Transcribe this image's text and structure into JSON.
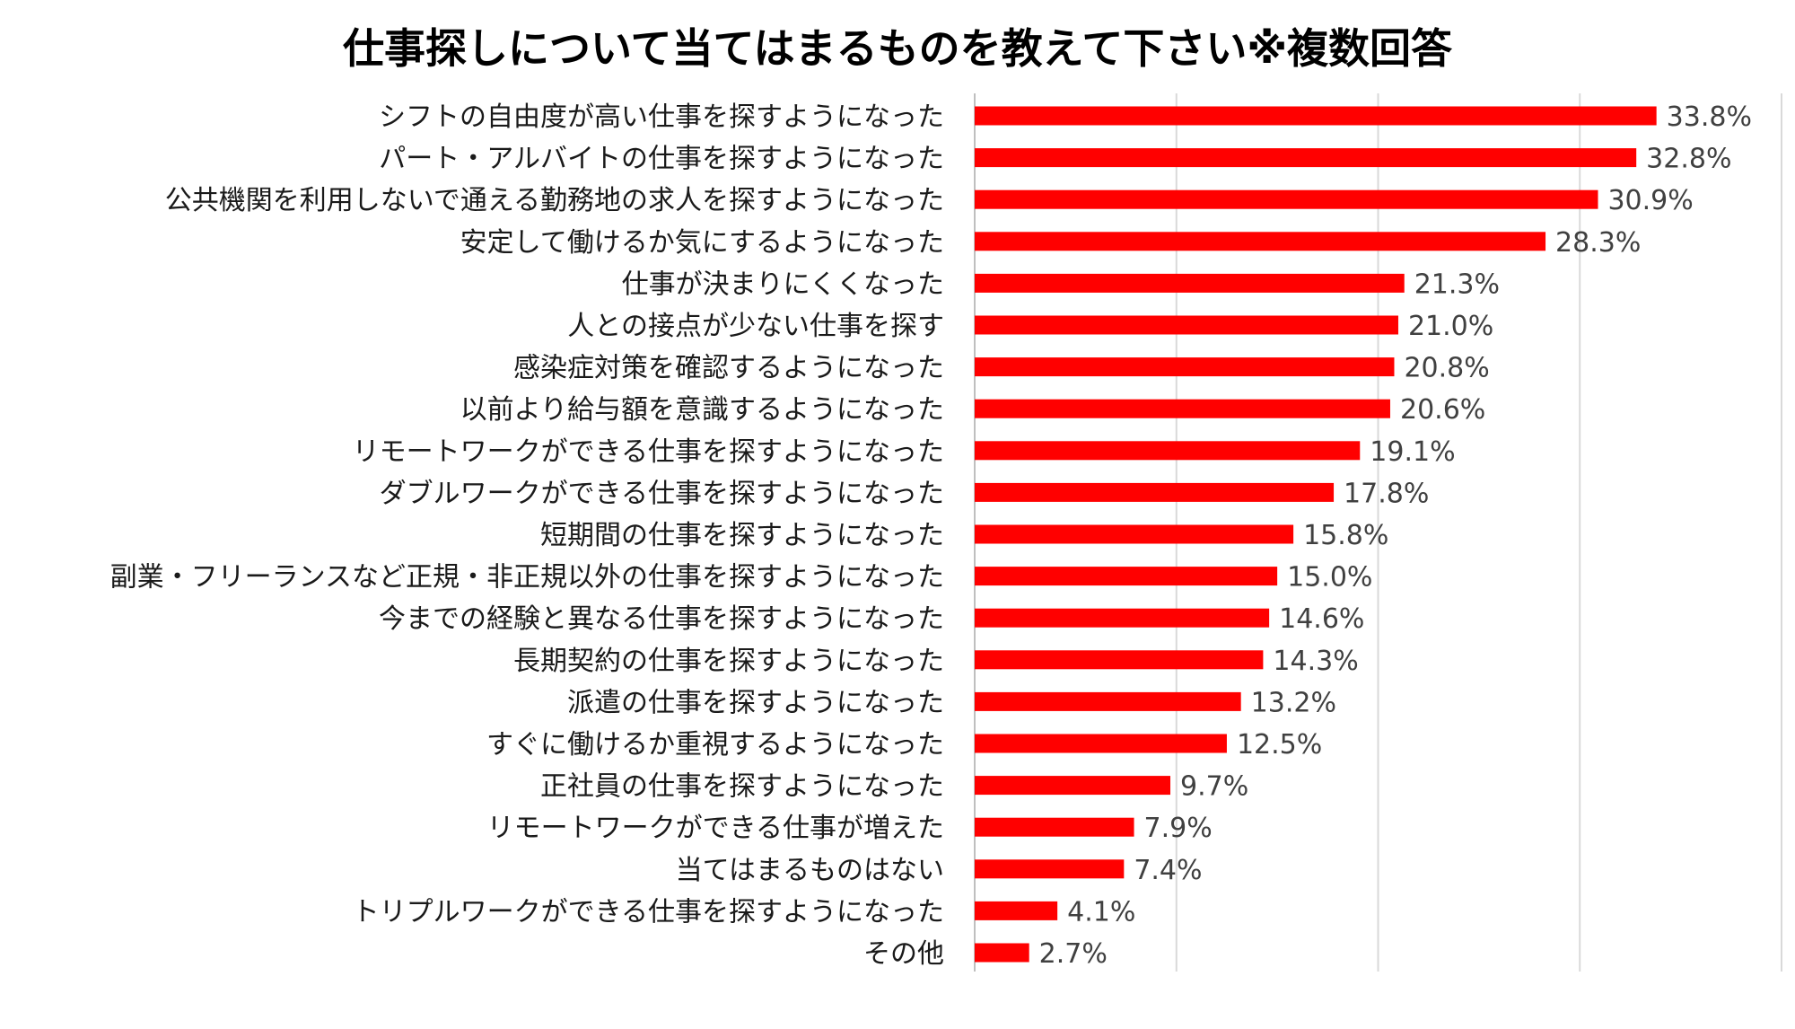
{
  "chart_data": {
    "type": "bar",
    "orientation": "horizontal",
    "title": "仕事探しについて当てはまるものを教えて下さい※複数回答",
    "xlabel": "",
    "ylabel": "",
    "xlim": [
      0,
      40
    ],
    "grid": true,
    "legend": "none",
    "value_suffix": "%",
    "bar_color": "#ff0000",
    "categories": [
      "シフトの自由度が高い仕事を探すようになった",
      "パート・アルバイトの仕事を探すようになった",
      "公共機関を利用しないで通える勤務地の求人を探すようになった",
      "安定して働けるか気にするようになった",
      "仕事が決まりにくくなった",
      "人との接点が少ない仕事を探す",
      "感染症対策を確認するようになった",
      "以前より給与額を意識するようになった",
      "リモートワークができる仕事を探すようになった",
      "ダブルワークができる仕事を探すようになった",
      "短期間の仕事を探すようになった",
      "副業・フリーランスなど正規・非正規以外の仕事を探すようになった",
      "今までの経験と異なる仕事を探すようになった",
      "長期契約の仕事を探すようになった",
      "派遣の仕事を探すようになった",
      "すぐに働けるか重視するようになった",
      "正社員の仕事を探すようになった",
      "リモートワークができる仕事が増えた",
      "当てはまるものはない",
      "トリプルワークができる仕事を探すようになった",
      "その他"
    ],
    "values": [
      33.8,
      32.8,
      30.9,
      28.3,
      21.3,
      21.0,
      20.8,
      20.6,
      19.1,
      17.8,
      15.8,
      15.0,
      14.6,
      14.3,
      13.2,
      12.5,
      9.7,
      7.9,
      7.4,
      4.1,
      2.7
    ],
    "value_labels": [
      "33.8%",
      "32.8%",
      "30.9%",
      "28.3%",
      "21.3%",
      "21.0%",
      "20.8%",
      "20.6%",
      "19.1%",
      "17.8%",
      "15.8%",
      "15.0%",
      "14.6%",
      "14.3%",
      "13.2%",
      "12.5%",
      "9.7%",
      "7.9%",
      "7.4%",
      "4.1%",
      "2.7%"
    ]
  }
}
